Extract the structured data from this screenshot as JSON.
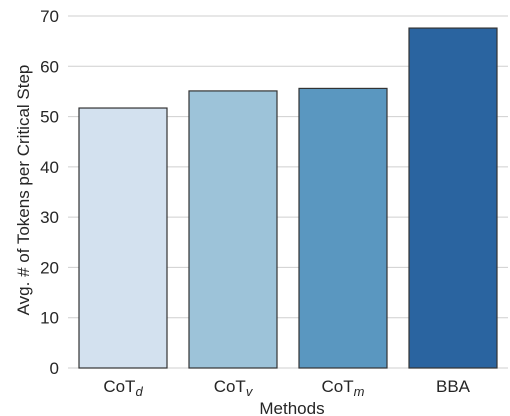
{
  "chart_data": {
    "type": "bar",
    "xlabel": "Methods",
    "ylabel": "Avg. # of Tokens per Critical Step",
    "ylim": [
      0,
      70
    ],
    "yticks": [
      0,
      10,
      20,
      30,
      40,
      50,
      60,
      70
    ],
    "grid": "horizontal",
    "categories": [
      {
        "base": "CoT",
        "sub": "d"
      },
      {
        "base": "CoT",
        "sub": "v"
      },
      {
        "base": "CoT",
        "sub": "m"
      },
      {
        "base": "BBA",
        "sub": ""
      }
    ],
    "values": [
      51.7,
      55.1,
      55.6,
      67.6
    ],
    "colors": [
      "#d3e1ef",
      "#9dc3d9",
      "#5a97c0",
      "#2a64a0"
    ]
  }
}
